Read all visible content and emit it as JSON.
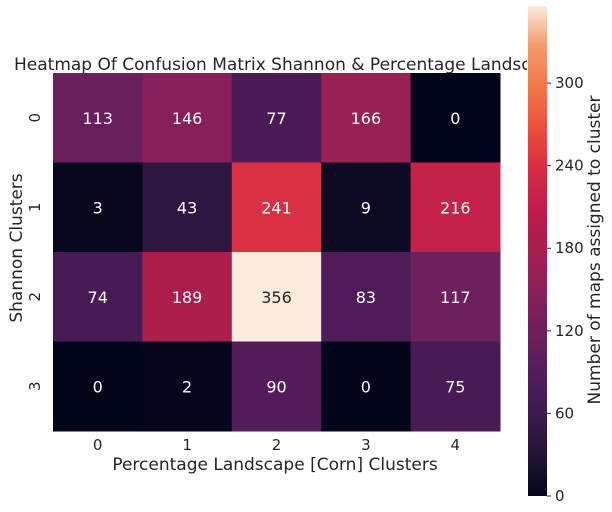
{
  "chart_data": {
    "type": "heatmap",
    "title": "Heatmap Of Confusion Matrix Shannon & Percentage Landscape [Corn] Clusters",
    "xlabel": "Percentage Landscape [Corn] Clusters",
    "ylabel": "Shannon Clusters",
    "x_categories": [
      "0",
      "1",
      "2",
      "3",
      "4"
    ],
    "y_categories": [
      "0",
      "1",
      "2",
      "3"
    ],
    "values": [
      [
        113,
        146,
        77,
        166,
        0
      ],
      [
        3,
        43,
        241,
        9,
        216
      ],
      [
        74,
        189,
        356,
        83,
        117
      ],
      [
        0,
        2,
        90,
        0,
        75
      ]
    ],
    "colorbar": {
      "label": "Number of maps assigned to cluster",
      "range": [
        0,
        356
      ],
      "ticks": [
        0,
        60,
        120,
        180,
        240,
        300
      ],
      "colormap": "rocket"
    },
    "grid": false
  }
}
